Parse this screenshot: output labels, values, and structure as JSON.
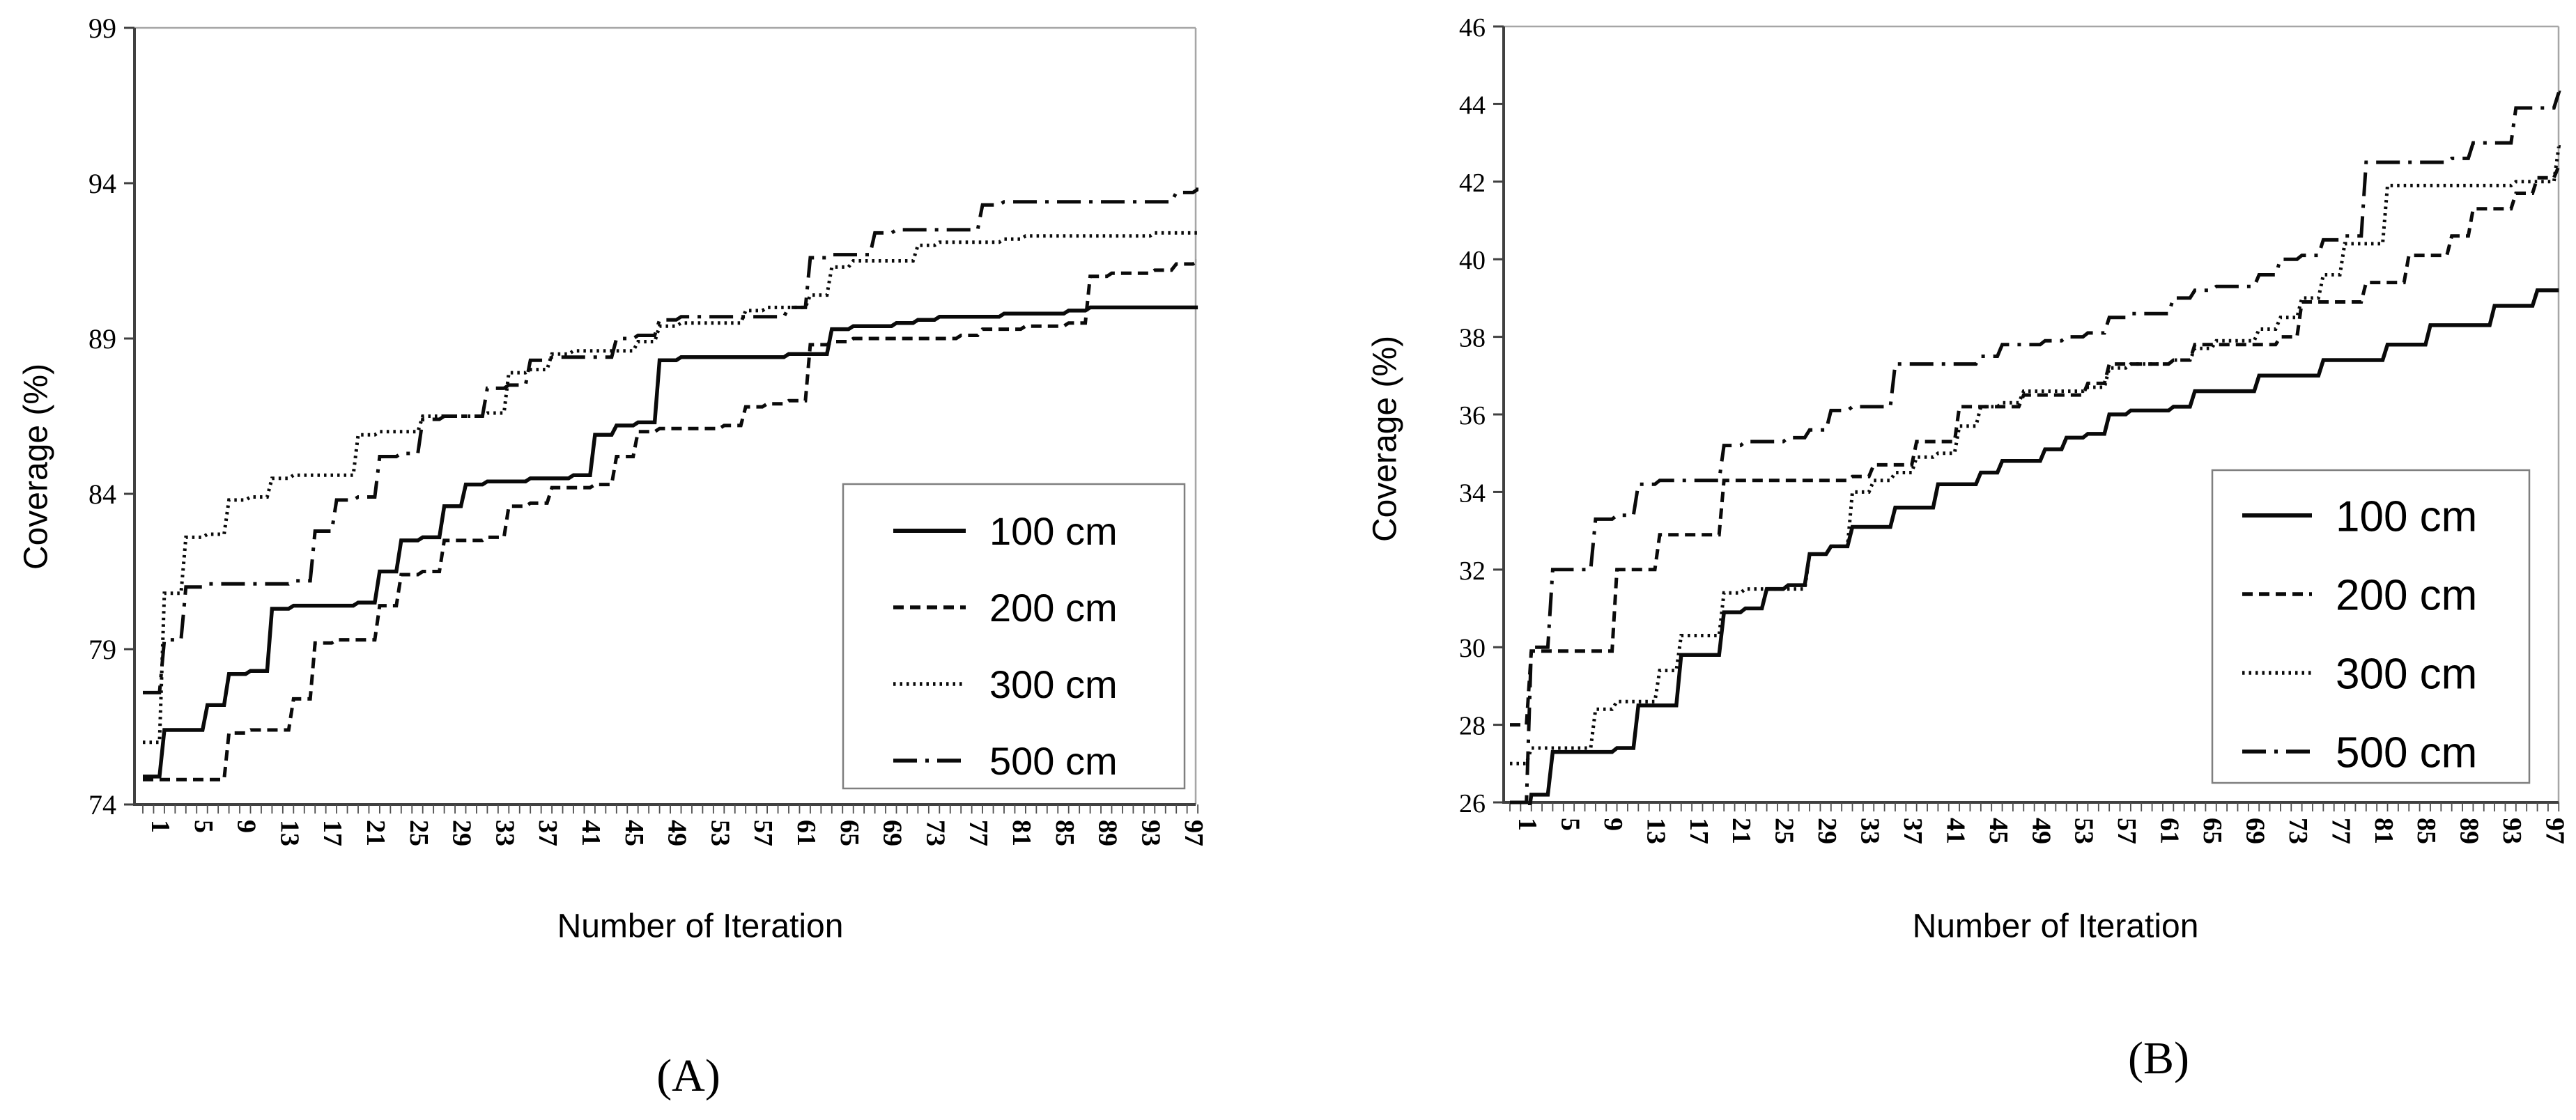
{
  "figure": {
    "background": "#ffffff",
    "line_color": "#0a0a0a",
    "axis_color": "#404040",
    "border_color": "#a6a6a6",
    "legend_border_color": "#7f7f7f"
  },
  "chart_data": [
    {
      "type": "line",
      "panel": "A",
      "caption": "(A)",
      "x_label": "Number of Iteration",
      "y_label": "Coverage (%)",
      "xlim": [
        1,
        99
      ],
      "ylim": [
        74,
        99
      ],
      "y_ticks": [
        74,
        79,
        84,
        89,
        94,
        99
      ],
      "x_tick_labels": [
        1,
        5,
        9,
        13,
        17,
        21,
        25,
        29,
        33,
        37,
        41,
        45,
        49,
        53,
        57,
        61,
        65,
        69,
        73,
        77,
        81,
        85,
        89,
        93,
        97
      ],
      "grid": false,
      "legend_position": "inside lower-right",
      "legend_labels": [
        "100 cm",
        "200 cm",
        "300 cm",
        "500 cm"
      ],
      "x": [
        1,
        3,
        5,
        7,
        9,
        11,
        13,
        15,
        17,
        19,
        21,
        23,
        25,
        27,
        29,
        31,
        33,
        35,
        37,
        39,
        41,
        43,
        45,
        47,
        49,
        51,
        53,
        55,
        57,
        59,
        61,
        63,
        65,
        67,
        69,
        71,
        73,
        75,
        77,
        79,
        81,
        83,
        85,
        87,
        89,
        91,
        93,
        95,
        97,
        99
      ],
      "series": [
        {
          "name": "100 cm",
          "style": "solid",
          "values": [
            74.9,
            76.4,
            76.4,
            77.2,
            78.2,
            78.3,
            80.3,
            80.4,
            80.4,
            80.4,
            80.5,
            81.5,
            82.5,
            82.6,
            83.6,
            84.3,
            84.4,
            84.4,
            84.5,
            84.5,
            84.6,
            85.9,
            86.2,
            86.3,
            88.3,
            88.4,
            88.4,
            88.4,
            88.4,
            88.4,
            88.5,
            88.5,
            89.3,
            89.4,
            89.4,
            89.5,
            89.6,
            89.7,
            89.7,
            89.7,
            89.8,
            89.8,
            89.8,
            89.9,
            90.0,
            90.0,
            90.0,
            90.0,
            90.0,
            90.0
          ]
        },
        {
          "name": "200 cm",
          "style": "dashed",
          "values": [
            74.8,
            74.8,
            74.8,
            74.8,
            76.3,
            76.4,
            76.4,
            77.4,
            79.2,
            79.3,
            79.3,
            80.4,
            81.4,
            81.5,
            82.5,
            82.5,
            82.6,
            83.6,
            83.7,
            84.2,
            84.2,
            84.3,
            85.2,
            86.0,
            86.1,
            86.1,
            86.1,
            86.2,
            86.8,
            86.9,
            87.0,
            88.8,
            88.9,
            89.0,
            89.0,
            89.0,
            89.0,
            89.0,
            89.1,
            89.3,
            89.3,
            89.4,
            89.4,
            89.5,
            91.0,
            91.1,
            91.1,
            91.2,
            91.4,
            91.5
          ]
        },
        {
          "name": "300 cm",
          "style": "dotted",
          "values": [
            76.0,
            80.8,
            82.6,
            82.7,
            83.8,
            83.9,
            84.5,
            84.6,
            84.6,
            84.6,
            85.9,
            86.0,
            86.0,
            86.5,
            86.5,
            86.5,
            86.6,
            87.9,
            88.0,
            88.5,
            88.6,
            88.6,
            88.6,
            88.9,
            89.4,
            89.5,
            89.5,
            89.5,
            89.9,
            90.0,
            90.0,
            90.4,
            91.3,
            91.5,
            91.5,
            91.5,
            92.0,
            92.1,
            92.1,
            92.1,
            92.2,
            92.3,
            92.3,
            92.3,
            92.3,
            92.3,
            92.3,
            92.4,
            92.4,
            92.4
          ]
        },
        {
          "name": "500 cm",
          "style": "dashdot",
          "values": [
            77.6,
            79.3,
            81.0,
            81.1,
            81.1,
            81.1,
            81.1,
            81.2,
            82.8,
            83.8,
            83.9,
            85.2,
            85.3,
            86.4,
            86.5,
            86.5,
            87.4,
            87.5,
            88.3,
            88.4,
            88.4,
            88.4,
            89.0,
            89.1,
            89.6,
            89.7,
            89.7,
            89.7,
            89.7,
            89.7,
            90.0,
            91.6,
            91.7,
            91.7,
            92.4,
            92.5,
            92.5,
            92.5,
            92.5,
            93.3,
            93.4,
            93.4,
            93.4,
            93.4,
            93.4,
            93.4,
            93.4,
            93.4,
            93.7,
            93.8
          ]
        }
      ]
    },
    {
      "type": "line",
      "panel": "B",
      "caption": "(B)",
      "x_label": "Number of Iteration",
      "y_label": "Coverage (%)",
      "xlim": [
        1,
        99
      ],
      "ylim": [
        26,
        46
      ],
      "y_ticks": [
        26,
        28,
        30,
        32,
        34,
        36,
        38,
        40,
        42,
        44,
        46
      ],
      "x_tick_labels": [
        1,
        5,
        9,
        13,
        17,
        21,
        25,
        29,
        33,
        37,
        41,
        45,
        49,
        53,
        57,
        61,
        65,
        69,
        73,
        77,
        81,
        85,
        89,
        93,
        97
      ],
      "grid": false,
      "legend_position": "inside lower-right",
      "legend_labels": [
        "100 cm",
        "200 cm",
        "300 cm",
        "500 cm"
      ],
      "x": [
        1,
        3,
        5,
        7,
        9,
        11,
        13,
        15,
        17,
        19,
        21,
        23,
        25,
        27,
        29,
        31,
        33,
        35,
        37,
        39,
        41,
        43,
        45,
        47,
        49,
        51,
        53,
        55,
        57,
        59,
        61,
        63,
        65,
        67,
        69,
        71,
        73,
        75,
        77,
        79,
        81,
        83,
        85,
        87,
        89,
        91,
        93,
        95,
        97,
        99
      ],
      "series": [
        {
          "name": "100 cm",
          "style": "solid",
          "values": [
            25.3,
            26.2,
            27.3,
            27.3,
            27.3,
            27.4,
            28.5,
            28.5,
            29.8,
            29.8,
            30.9,
            31.0,
            31.5,
            31.6,
            32.4,
            32.6,
            33.1,
            33.1,
            33.6,
            33.6,
            34.2,
            34.2,
            34.5,
            34.8,
            34.8,
            35.1,
            35.4,
            35.5,
            36.0,
            36.1,
            36.1,
            36.2,
            36.6,
            36.6,
            36.6,
            37.0,
            37.0,
            37.0,
            37.4,
            37.4,
            37.4,
            37.8,
            37.8,
            38.3,
            38.3,
            38.3,
            38.8,
            38.8,
            39.2,
            39.2
          ]
        },
        {
          "name": "200 cm",
          "style": "dashed",
          "values": [
            28.0,
            29.9,
            29.9,
            29.9,
            29.9,
            32.0,
            32.0,
            32.9,
            32.9,
            32.9,
            34.3,
            34.3,
            34.3,
            34.3,
            34.3,
            34.3,
            34.4,
            34.7,
            34.7,
            35.3,
            35.3,
            36.2,
            36.2,
            36.2,
            36.5,
            36.5,
            36.5,
            36.8,
            37.3,
            37.3,
            37.3,
            37.4,
            37.8,
            37.8,
            37.8,
            37.8,
            38.0,
            38.9,
            38.9,
            38.9,
            39.4,
            39.4,
            40.1,
            40.1,
            40.6,
            41.3,
            41.3,
            41.7,
            42.1,
            42.4
          ]
        },
        {
          "name": "300 cm",
          "style": "dotted",
          "values": [
            27.0,
            27.4,
            27.4,
            27.4,
            28.4,
            28.6,
            28.6,
            29.4,
            30.3,
            30.3,
            31.4,
            31.5,
            31.5,
            31.5,
            32.4,
            32.6,
            34.0,
            34.3,
            34.5,
            34.9,
            35.0,
            35.7,
            36.2,
            36.3,
            36.6,
            36.6,
            36.6,
            36.7,
            37.2,
            37.3,
            37.3,
            37.4,
            37.7,
            37.9,
            37.9,
            38.2,
            38.5,
            39.0,
            39.6,
            40.4,
            40.4,
            41.9,
            41.9,
            41.9,
            41.9,
            41.9,
            41.9,
            42.0,
            42.0,
            42.9
          ]
        },
        {
          "name": "500 cm",
          "style": "dashdot",
          "values": [
            26.0,
            30.0,
            32.0,
            32.0,
            33.3,
            33.4,
            34.2,
            34.3,
            34.3,
            34.3,
            35.2,
            35.3,
            35.3,
            35.4,
            35.6,
            36.1,
            36.2,
            36.2,
            37.3,
            37.3,
            37.3,
            37.3,
            37.5,
            37.8,
            37.8,
            37.9,
            38.0,
            38.1,
            38.5,
            38.6,
            38.6,
            39.0,
            39.2,
            39.3,
            39.3,
            39.6,
            40.0,
            40.1,
            40.5,
            40.6,
            42.5,
            42.5,
            42.5,
            42.5,
            42.6,
            43.0,
            43.0,
            43.9,
            43.9,
            44.3
          ]
        }
      ]
    }
  ]
}
